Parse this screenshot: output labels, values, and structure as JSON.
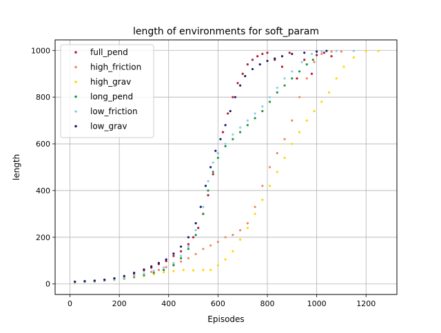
{
  "chart_data": {
    "type": "scatter",
    "title": "length of environments for soft_param",
    "xlabel": "Episodes",
    "ylabel": "length",
    "xlim": [
      -60,
      1325
    ],
    "ylim": [
      -45,
      1045
    ],
    "xticks": [
      0,
      200,
      400,
      600,
      800,
      1000,
      1200
    ],
    "yticks": [
      0,
      200,
      400,
      600,
      800,
      1000
    ],
    "grid": true,
    "legend_position": "top-left",
    "series": [
      {
        "name": "full_pend",
        "color": "#b2182b",
        "max_episode": 1070,
        "points": [
          [
            20,
            8
          ],
          [
            60,
            11
          ],
          [
            100,
            14
          ],
          [
            140,
            18
          ],
          [
            180,
            24
          ],
          [
            220,
            32
          ],
          [
            260,
            45
          ],
          [
            300,
            58
          ],
          [
            330,
            70
          ],
          [
            360,
            85
          ],
          [
            390,
            98
          ],
          [
            420,
            120
          ],
          [
            450,
            140
          ],
          [
            480,
            170
          ],
          [
            500,
            200
          ],
          [
            520,
            240
          ],
          [
            540,
            300
          ],
          [
            560,
            380
          ],
          [
            580,
            470
          ],
          [
            600,
            560
          ],
          [
            620,
            650
          ],
          [
            640,
            730
          ],
          [
            660,
            800
          ],
          [
            680,
            860
          ],
          [
            700,
            900
          ],
          [
            720,
            940
          ],
          [
            740,
            960
          ],
          [
            760,
            975
          ],
          [
            780,
            985
          ],
          [
            800,
            990
          ],
          [
            830,
            960
          ],
          [
            860,
            930
          ],
          [
            890,
            990
          ],
          [
            920,
            880
          ],
          [
            950,
            960
          ],
          [
            980,
            900
          ],
          [
            1000,
            980
          ],
          [
            1030,
            990
          ],
          [
            1060,
            975
          ]
        ]
      },
      {
        "name": "high_friction",
        "color": "#f4845f",
        "max_episode": 1180,
        "points": [
          [
            20,
            6
          ],
          [
            60,
            8
          ],
          [
            100,
            10
          ],
          [
            140,
            14
          ],
          [
            180,
            20
          ],
          [
            220,
            28
          ],
          [
            260,
            36
          ],
          [
            300,
            44
          ],
          [
            330,
            52
          ],
          [
            360,
            60
          ],
          [
            390,
            72
          ],
          [
            420,
            85
          ],
          [
            450,
            96
          ],
          [
            480,
            110
          ],
          [
            510,
            128
          ],
          [
            540,
            150
          ],
          [
            570,
            165
          ],
          [
            600,
            180
          ],
          [
            630,
            200
          ],
          [
            660,
            210
          ],
          [
            690,
            230
          ],
          [
            720,
            260
          ],
          [
            750,
            330
          ],
          [
            780,
            420
          ],
          [
            810,
            500
          ],
          [
            840,
            560
          ],
          [
            870,
            620
          ],
          [
            900,
            700
          ],
          [
            930,
            800
          ],
          [
            960,
            880
          ],
          [
            990,
            950
          ],
          [
            1020,
            985
          ],
          [
            1060,
            995
          ],
          [
            1100,
            995
          ],
          [
            1150,
            998
          ]
        ]
      },
      {
        "name": "high_grav",
        "color": "#ffd700",
        "max_episode": 1265,
        "points": [
          [
            20,
            6
          ],
          [
            60,
            8
          ],
          [
            100,
            10
          ],
          [
            140,
            13
          ],
          [
            180,
            17
          ],
          [
            220,
            22
          ],
          [
            260,
            28
          ],
          [
            300,
            34
          ],
          [
            340,
            42
          ],
          [
            380,
            50
          ],
          [
            420,
            55
          ],
          [
            460,
            60
          ],
          [
            500,
            58
          ],
          [
            540,
            60
          ],
          [
            570,
            60
          ],
          [
            600,
            80
          ],
          [
            630,
            105
          ],
          [
            660,
            140
          ],
          [
            690,
            190
          ],
          [
            720,
            240
          ],
          [
            750,
            300
          ],
          [
            780,
            360
          ],
          [
            810,
            420
          ],
          [
            840,
            480
          ],
          [
            870,
            540
          ],
          [
            900,
            600
          ],
          [
            930,
            650
          ],
          [
            960,
            700
          ],
          [
            990,
            740
          ],
          [
            1020,
            780
          ],
          [
            1050,
            820
          ],
          [
            1080,
            880
          ],
          [
            1110,
            930
          ],
          [
            1150,
            970
          ],
          [
            1200,
            997
          ],
          [
            1250,
            998
          ]
        ]
      },
      {
        "name": "long_pend",
        "color": "#1a9641",
        "max_episode": 990,
        "points": [
          [
            20,
            8
          ],
          [
            60,
            10
          ],
          [
            100,
            12
          ],
          [
            140,
            15
          ],
          [
            180,
            19
          ],
          [
            220,
            24
          ],
          [
            260,
            30
          ],
          [
            300,
            38
          ],
          [
            340,
            48
          ],
          [
            380,
            60
          ],
          [
            420,
            80
          ],
          [
            450,
            110
          ],
          [
            480,
            150
          ],
          [
            510,
            210
          ],
          [
            540,
            300
          ],
          [
            560,
            400
          ],
          [
            580,
            480
          ],
          [
            600,
            540
          ],
          [
            630,
            590
          ],
          [
            660,
            620
          ],
          [
            690,
            650
          ],
          [
            720,
            680
          ],
          [
            750,
            710
          ],
          [
            780,
            740
          ],
          [
            810,
            780
          ],
          [
            840,
            820
          ],
          [
            870,
            850
          ],
          [
            900,
            880
          ],
          [
            930,
            910
          ],
          [
            960,
            940
          ],
          [
            985,
            960
          ]
        ]
      },
      {
        "name": "low_friction",
        "color": "#87ceeb",
        "max_episode": 1160,
        "points": [
          [
            20,
            7
          ],
          [
            60,
            9
          ],
          [
            100,
            11
          ],
          [
            140,
            14
          ],
          [
            180,
            19
          ],
          [
            220,
            26
          ],
          [
            260,
            34
          ],
          [
            300,
            44
          ],
          [
            340,
            56
          ],
          [
            380,
            70
          ],
          [
            420,
            90
          ],
          [
            450,
            120
          ],
          [
            480,
            160
          ],
          [
            510,
            230
          ],
          [
            540,
            330
          ],
          [
            560,
            440
          ],
          [
            580,
            520
          ],
          [
            600,
            560
          ],
          [
            630,
            600
          ],
          [
            660,
            640
          ],
          [
            690,
            670
          ],
          [
            720,
            700
          ],
          [
            750,
            730
          ],
          [
            780,
            760
          ],
          [
            810,
            800
          ],
          [
            840,
            840
          ],
          [
            870,
            880
          ],
          [
            900,
            910
          ],
          [
            940,
            950
          ],
          [
            980,
            985
          ],
          [
            1020,
            995
          ],
          [
            1080,
            998
          ],
          [
            1150,
            998
          ]
        ]
      },
      {
        "name": "low_grav",
        "color": "#191970",
        "max_episode": 1040,
        "points": [
          [
            20,
            10
          ],
          [
            60,
            12
          ],
          [
            100,
            14
          ],
          [
            140,
            18
          ],
          [
            180,
            24
          ],
          [
            220,
            34
          ],
          [
            260,
            48
          ],
          [
            300,
            62
          ],
          [
            330,
            75
          ],
          [
            360,
            90
          ],
          [
            390,
            105
          ],
          [
            420,
            130
          ],
          [
            450,
            160
          ],
          [
            480,
            200
          ],
          [
            510,
            260
          ],
          [
            530,
            330
          ],
          [
            550,
            420
          ],
          [
            570,
            500
          ],
          [
            590,
            570
          ],
          [
            610,
            620
          ],
          [
            630,
            680
          ],
          [
            650,
            740
          ],
          [
            670,
            800
          ],
          [
            690,
            850
          ],
          [
            710,
            890
          ],
          [
            740,
            920
          ],
          [
            770,
            940
          ],
          [
            800,
            955
          ],
          [
            830,
            965
          ],
          [
            860,
            975
          ],
          [
            900,
            985
          ],
          [
            950,
            990
          ],
          [
            1000,
            995
          ],
          [
            1040,
            998
          ]
        ]
      }
    ]
  }
}
